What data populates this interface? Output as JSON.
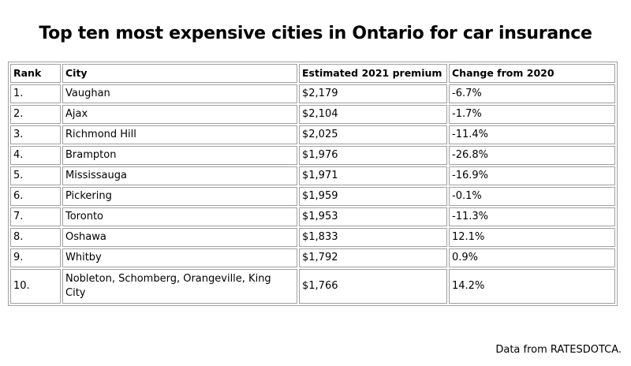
{
  "title": "Top ten most expensive cities in Ontario for car insurance",
  "table": {
    "headers": [
      "Rank",
      "City",
      "Estimated 2021 premium",
      "Change from 2020"
    ],
    "rows": [
      {
        "rank": "1.",
        "city": "Vaughan",
        "premium": "$2,179",
        "change": "-6.7%"
      },
      {
        "rank": "2.",
        "city": "Ajax",
        "premium": "$2,104",
        "change": "-1.7%"
      },
      {
        "rank": "3.",
        "city": "Richmond Hill",
        "premium": "$2,025",
        "change": "-11.4%"
      },
      {
        "rank": "4.",
        "city": "Brampton",
        "premium": "$1,976",
        "change": "-26.8%"
      },
      {
        "rank": "5.",
        "city": "Mississauga",
        "premium": "$1,971",
        "change": "-16.9%"
      },
      {
        "rank": "6.",
        "city": "Pickering",
        "premium": "$1,959",
        "change": "-0.1%"
      },
      {
        "rank": "7.",
        "city": "Toronto",
        "premium": "$1,953",
        "change": "-11.3%"
      },
      {
        "rank": "8.",
        "city": "Oshawa",
        "premium": "$1,833",
        "change": "12.1%"
      },
      {
        "rank": "9.",
        "city": "Whitby",
        "premium": "$1,792",
        "change": "0.9%"
      },
      {
        "rank": "10.",
        "city": "Nobleton, Schomberg, Orangeville, King City",
        "premium": "$1,766",
        "change": "14.2%"
      }
    ]
  },
  "footer": "Data from RATESDOTCA."
}
